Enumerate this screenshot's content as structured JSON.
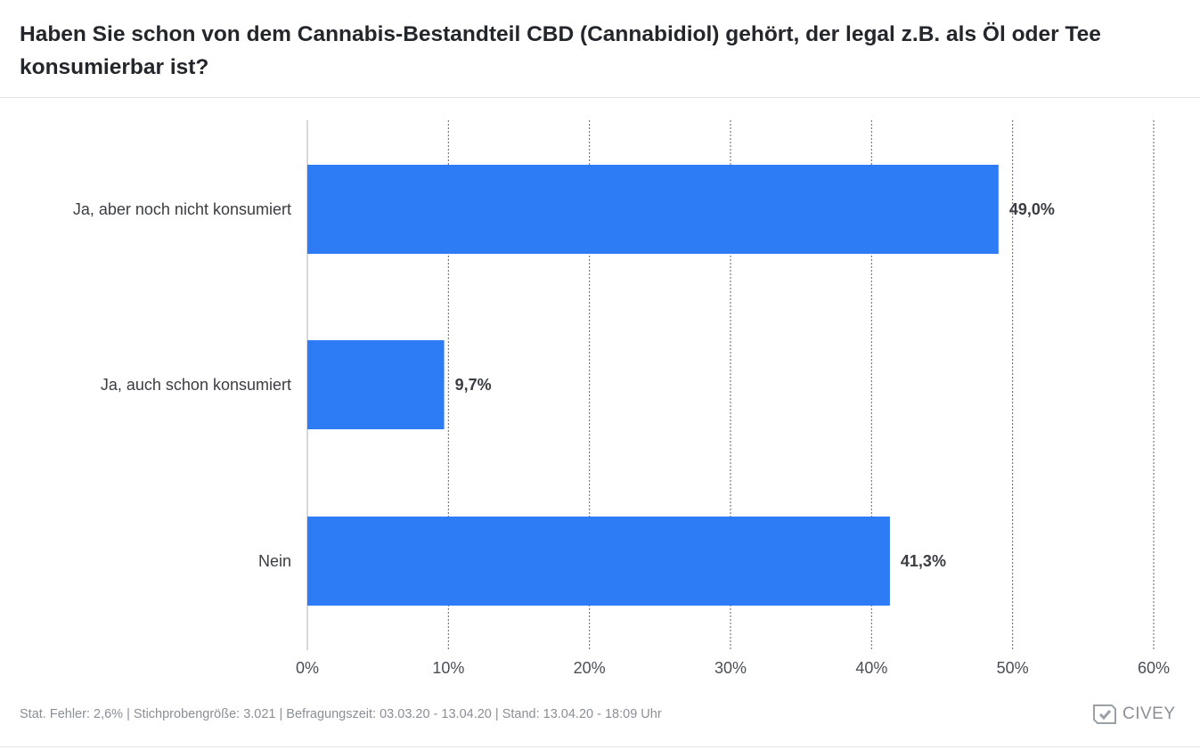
{
  "header": {
    "title": "Haben Sie schon von dem Cannabis-Bestandteil CBD (Cannabidiol) gehört, der legal z.B. als Öl oder Tee konsumierbar ist?"
  },
  "chart_data": {
    "type": "bar",
    "orientation": "horizontal",
    "categories": [
      "Ja, aber noch nicht konsumiert",
      "Ja, auch schon konsumiert",
      "Nein"
    ],
    "values": [
      49.0,
      9.7,
      41.3
    ],
    "value_labels": [
      "49,0%",
      "9,7%",
      "41,3%"
    ],
    "xlim": [
      0,
      60
    ],
    "xticks": [
      "0%",
      "10%",
      "20%",
      "30%",
      "40%",
      "50%",
      "60%"
    ],
    "xlabel": "",
    "ylabel": "",
    "grid": true,
    "bar_color": "#2e7bf6"
  },
  "footer": {
    "info": "Stat. Fehler: 2,6% | Stichprobengröße: 3.021 | Befragungszeit: 03.03.20 - 13.04.20 | Stand: 13.04.20 - 18:09 Uhr",
    "brand": "CIVEY",
    "brand_icon": "civey-logo-icon"
  }
}
